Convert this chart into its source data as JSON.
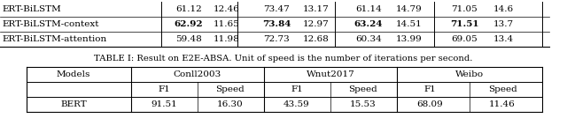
{
  "caption": "TABLE I: Result on E2E-ABSA. Unit of speed is the number of iterations per second.",
  "top_rows": [
    {
      "model": "ERT-BiLSTM",
      "vals": [
        "61.12",
        "12.46",
        "73.47",
        "13.17",
        "61.14",
        "14.79",
        "71.05",
        "14.6"
      ],
      "bold": []
    },
    {
      "model": "ERT-BiLSTM-context",
      "vals": [
        "62.92",
        "11.65",
        "73.84",
        "12.97",
        "63.24",
        "14.51",
        "71.51",
        "13.7"
      ],
      "bold": [
        0,
        2,
        4,
        6
      ]
    },
    {
      "model": "ERT-BiLSTM-attention",
      "vals": [
        "59.48",
        "11.98",
        "72.73",
        "12.68",
        "60.34",
        "13.99",
        "69.05",
        "13.4"
      ],
      "bold": []
    }
  ],
  "top_vsep_x": [
    182,
    268,
    378,
    490,
    612
  ],
  "top_col_centers": [
    213,
    256,
    312,
    357,
    416,
    462,
    524,
    568
  ],
  "bottom_header_groups": [
    "Conll2003",
    "Wnut2017",
    "Weibo"
  ],
  "bottom_subheaders": [
    "F1",
    "Speed",
    "F1",
    "Speed",
    "F1",
    "Speed"
  ],
  "bottom_rows": [
    {
      "model": "BERT",
      "vals": [
        "91.51",
        "16.30",
        "43.59",
        "15.53",
        "68.09",
        "11.46"
      ],
      "bold": []
    }
  ],
  "bg_color": "#ffffff",
  "font_size": 7.5,
  "caption_font_size": 7.2
}
